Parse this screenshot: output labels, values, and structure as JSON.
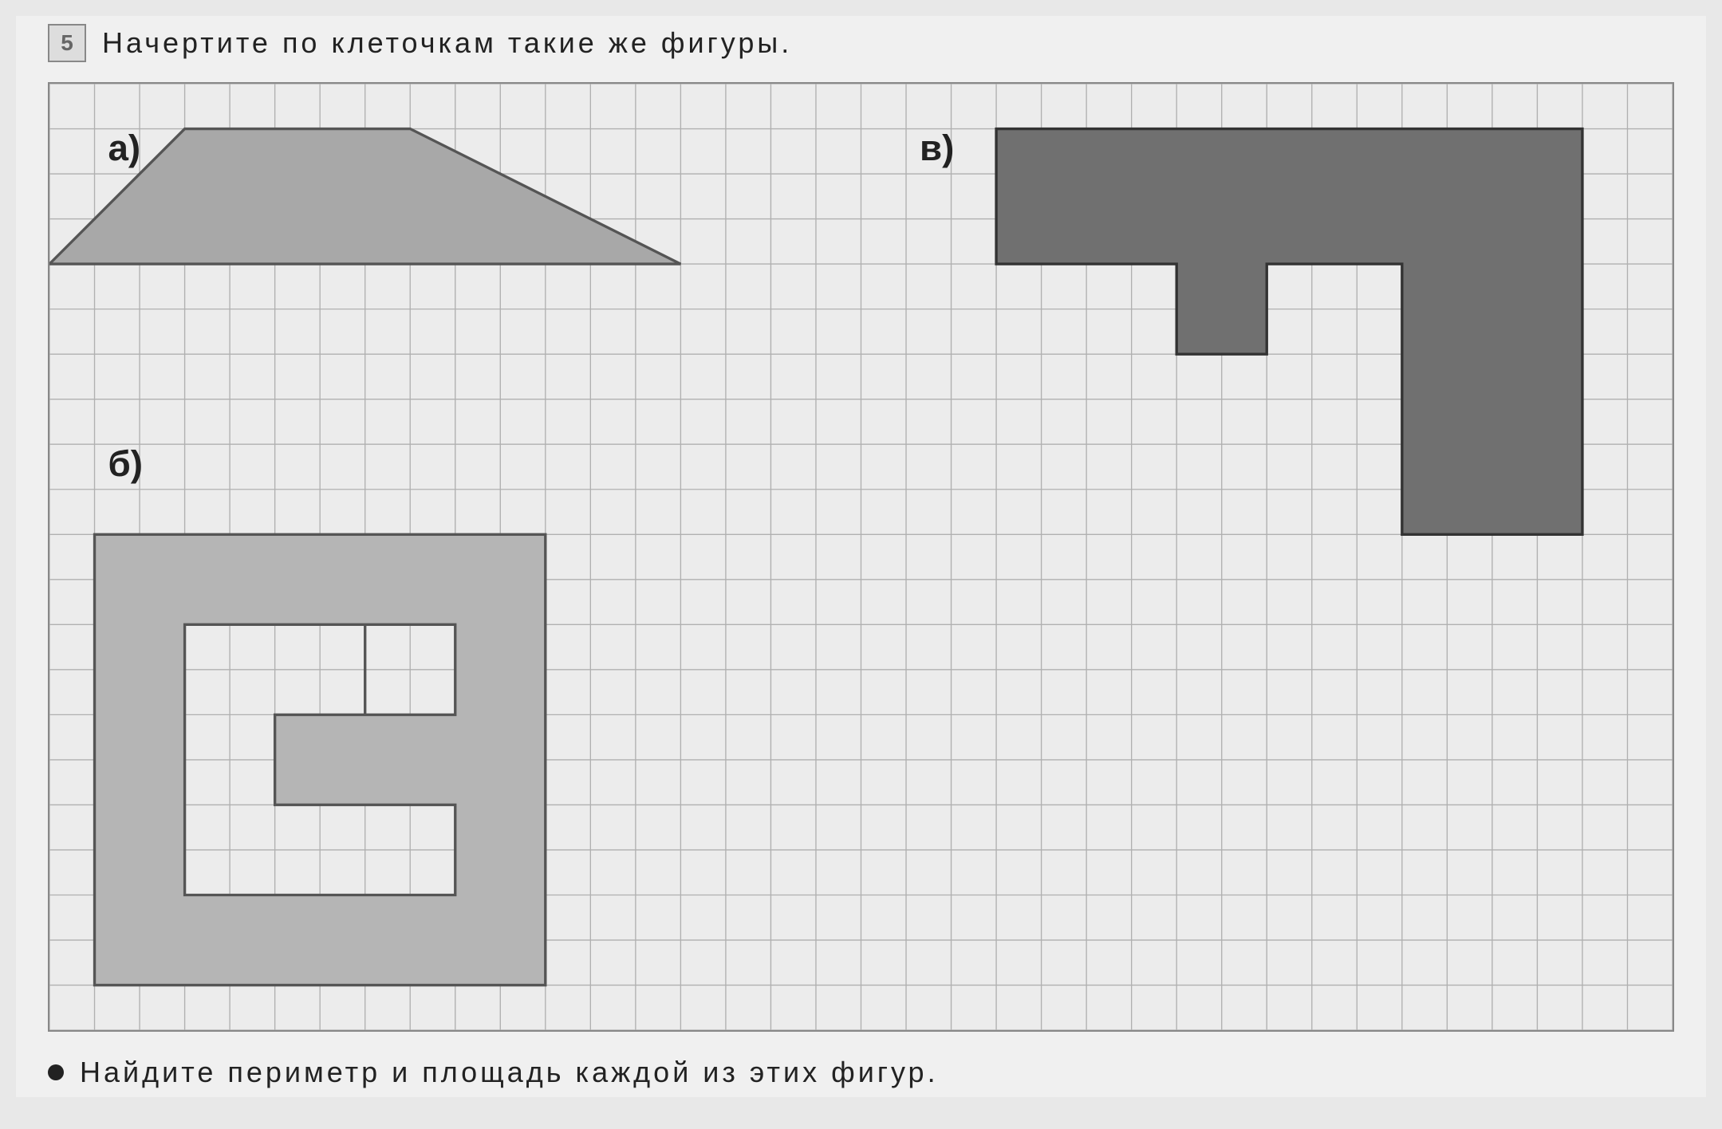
{
  "problem_number": "5",
  "instruction": "Начертите  по  клеточкам  такие  же  фигуры.",
  "footer_instruction": "Найдите  периметр  и  площадь  каждой  из  этих  фигур.",
  "grid": {
    "cols": 36,
    "rows": 21,
    "cell": 42,
    "grid_color": "#b0b0b0",
    "border_color": "#888888",
    "background": "#ececec"
  },
  "labels": {
    "a": {
      "text": "а)",
      "col": 1.3,
      "row": 1.7
    },
    "b": {
      "text": "б)",
      "col": 1.3,
      "row": 8.7
    },
    "v": {
      "text": "в)",
      "col": 19.3,
      "row": 1.7
    }
  },
  "shapes": {
    "a": {
      "type": "polygon",
      "fill": "#a8a8a8",
      "stroke": "#555555",
      "stroke_width": 2.5,
      "points": [
        [
          0,
          4
        ],
        [
          3,
          1
        ],
        [
          8,
          1
        ],
        [
          14,
          4
        ]
      ]
    },
    "b": {
      "type": "polygon",
      "fill": "#b5b5b5",
      "stroke": "#555555",
      "stroke_width": 2.5,
      "points": [
        [
          1,
          10
        ],
        [
          11,
          10
        ],
        [
          11,
          14
        ],
        [
          9,
          14
        ],
        [
          9,
          12
        ],
        [
          7,
          12
        ],
        [
          7,
          14
        ],
        [
          9,
          14
        ],
        [
          9,
          16
        ],
        [
          5,
          16
        ],
        [
          5,
          14
        ],
        [
          7,
          14
        ],
        [
          7,
          12
        ],
        [
          3,
          12
        ],
        [
          3,
          14
        ],
        [
          5,
          14
        ],
        [
          5,
          16
        ],
        [
          9,
          16
        ],
        [
          9,
          18
        ],
        [
          3,
          18
        ],
        [
          3,
          12
        ],
        [
          1,
          12
        ]
      ],
      "outer_points": [
        [
          1,
          10
        ],
        [
          11,
          10
        ],
        [
          11,
          20
        ],
        [
          1,
          20
        ]
      ],
      "inner_cutout": true
    },
    "v": {
      "type": "polygon",
      "fill": "#707070",
      "stroke": "#333333",
      "stroke_width": 2.5,
      "points": [
        [
          21,
          1
        ],
        [
          34,
          1
        ],
        [
          34,
          10
        ],
        [
          30,
          10
        ],
        [
          30,
          4
        ],
        [
          27,
          4
        ],
        [
          27,
          6
        ],
        [
          25,
          6
        ],
        [
          25,
          4
        ],
        [
          21,
          4
        ]
      ]
    }
  },
  "shape_b_spiral": {
    "fill": "#b5b5b5",
    "stroke": "#555555",
    "stroke_width": 2.5,
    "outer": [
      [
        1,
        10
      ],
      [
        11,
        10
      ],
      [
        11,
        20
      ],
      [
        1,
        20
      ]
    ],
    "path_points": [
      [
        1,
        10
      ],
      [
        11,
        10
      ],
      [
        11,
        20
      ],
      [
        1,
        20
      ],
      [
        1,
        10
      ],
      [
        3,
        12
      ],
      [
        3,
        18
      ],
      [
        9,
        18
      ],
      [
        9,
        16
      ],
      [
        5,
        16
      ],
      [
        5,
        14
      ],
      [
        7,
        14
      ],
      [
        7,
        12
      ],
      [
        3,
        12
      ],
      [
        9,
        12
      ],
      [
        9,
        14
      ],
      [
        7,
        14
      ],
      [
        7,
        12
      ],
      [
        9,
        12
      ]
    ]
  }
}
